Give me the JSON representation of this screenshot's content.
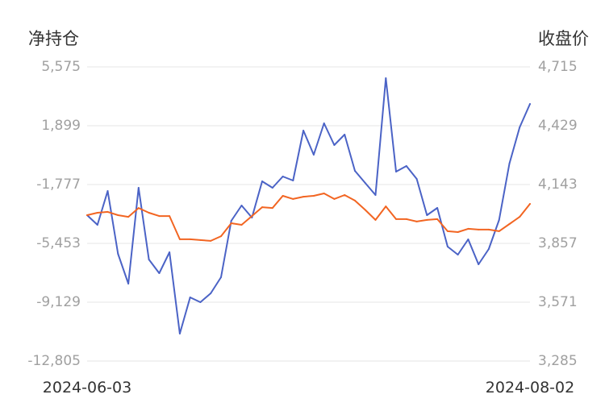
{
  "chart_data": {
    "type": "line",
    "y_axes": [
      {
        "position": "left",
        "label": "净持仓",
        "ylim": [
          -12805,
          5575
        ],
        "ticks": [
          "5,575",
          "1,899",
          "-1,777",
          "-5,453",
          "-9,129",
          "-12,805"
        ]
      },
      {
        "position": "right",
        "label": "收盘价",
        "ylim": [
          3285,
          4715
        ],
        "ticks": [
          "4,715",
          "4,429",
          "4,143",
          "3,857",
          "3,571",
          "3,285"
        ]
      }
    ],
    "x_labels": [
      "2024-06-03",
      "2024-08-02"
    ],
    "series": [
      {
        "y_axis": 0,
        "color": "#4b63c6",
        "values": [
          -3690,
          -4295,
          -2180,
          -6108,
          -7971,
          -1978,
          -6460,
          -7316,
          -6007,
          -11093,
          -8827,
          -9129,
          -8575,
          -7568,
          -4043,
          -3086,
          -3842,
          -1576,
          -1978,
          -1273,
          -1525,
          1597,
          86,
          2050,
          690,
          1345,
          -921,
          -1676,
          -2432,
          4870,
          -971,
          -619,
          -1425,
          -3690,
          -3237,
          -5654,
          -6158,
          -5201,
          -6762,
          -5805,
          -3993,
          -468,
          1798,
          3259
        ]
      },
      {
        "y_axis": 1,
        "color": "#f26522",
        "values": [
          3994,
          4006,
          4010,
          3994,
          3986,
          4029,
          4006,
          3990,
          3990,
          3877,
          3877,
          3873,
          3869,
          3892,
          3955,
          3947,
          3990,
          4033,
          4029,
          4088,
          4073,
          4084,
          4088,
          4100,
          4073,
          4092,
          4065,
          4020,
          3971,
          4037,
          3975,
          3975,
          3963,
          3971,
          3975,
          3916,
          3912,
          3928,
          3924,
          3924,
          3916,
          3951,
          3986,
          4049
        ]
      }
    ],
    "grid": true
  }
}
